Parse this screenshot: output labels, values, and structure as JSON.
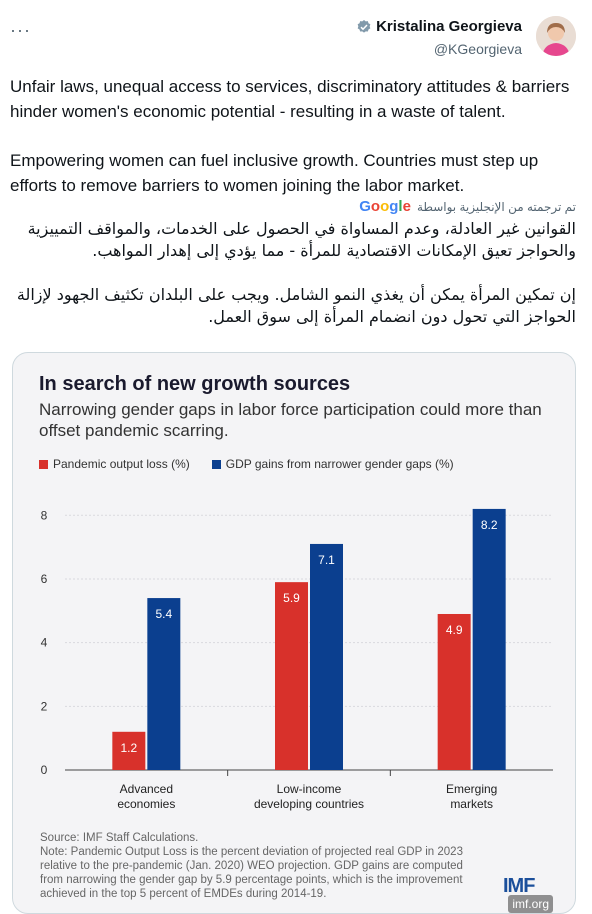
{
  "tweet": {
    "more_label": "···",
    "author_name": "Kristalina Georgieva",
    "author_handle": "@KGeorgieva",
    "paragraphs": [
      "Unfair laws, unequal access to services, discriminatory attitudes & barriers hinder women's economic potential - resulting in a waste of talent.",
      "Empowering women can fuel inclusive growth. Countries must step up efforts to remove barriers to women joining the labor market."
    ],
    "translation_label": "تم ترجمته من الإنجليزية بواسطة",
    "translation_provider": "Google",
    "translated_paragraphs": [
      "القوانين غير العادلة، وعدم المساواة في الحصول على الخدمات، والمواقف التمييزية والحواجز تعيق الإمكانات الاقتصادية للمرأة - مما يؤدي إلى إهدار المواهب.",
      "إن تمكين المرأة يمكن أن يغذي النمو الشامل. ويجب على البلدان تكثيف الجهود لإزالة الحواجز التي تحول دون انضمام المرأة إلى سوق العمل."
    ]
  },
  "card": {
    "source": "Source: IMF Staff Calculations.",
    "note": "Note: Pandemic Output Loss is the percent deviation of projected real GDP in 2023 relative to the pre-pandemic (Jan. 2020) WEO projection. GDP gains are computed from narrowing the gender gap by 5.9 percentage points, which is the improvement achieved in the top 5 percent of EMDEs during 2014-19.",
    "logo": "IMF",
    "watermark": "imf.org"
  },
  "colors": {
    "red": "#d8312b",
    "blue": "#0b3f8f"
  },
  "chart_data": {
    "type": "bar",
    "title": "In search of new growth sources",
    "subtitle": "Narrowing gender gaps in labor force participation could more than offset pandemic scarring.",
    "categories": [
      [
        "Advanced",
        "economies"
      ],
      [
        "Low-income",
        "developing countries"
      ],
      [
        "Emerging",
        "markets"
      ]
    ],
    "series": [
      {
        "name": "Pandemic output loss (%)",
        "values": [
          1.2,
          5.9,
          4.9
        ],
        "color": "#d8312b"
      },
      {
        "name": "GDP gains from narrower gender gaps (%)",
        "values": [
          5.4,
          7.1,
          8.2
        ],
        "color": "#0b3f8f"
      }
    ],
    "yticks": [
      0,
      2,
      4,
      6,
      8
    ],
    "ylim": [
      0,
      8.7
    ],
    "grid": true,
    "legend": "top-left"
  }
}
